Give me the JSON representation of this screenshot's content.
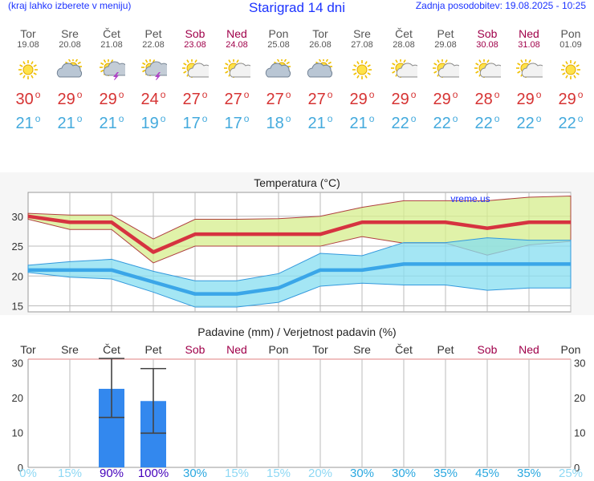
{
  "header": {
    "menu_hint": "(kraj lahko izberete v meniju)",
    "title": "Starigrad 14 dni",
    "updated": "Zadnja posodobitev: 19.08.2025 - 10:25"
  },
  "colors": {
    "link": "#1c33ff",
    "weekday": "#555555",
    "weekend": "#a0004a",
    "hi": "#d63333",
    "lo": "#44aadd",
    "bar": "#3388ee"
  },
  "days": [
    {
      "name": "Tor",
      "date": "19.08",
      "weekend": false,
      "icon": "sun-icon",
      "hi": "30",
      "lo": "21",
      "prob": "0%"
    },
    {
      "name": "Sre",
      "date": "20.08",
      "weekend": false,
      "icon": "cloud-sun-icon",
      "hi": "29",
      "lo": "21",
      "prob": "15%"
    },
    {
      "name": "Čet",
      "date": "21.08",
      "weekend": false,
      "icon": "storm-sun-icon",
      "hi": "29",
      "lo": "21",
      "prob": "90%"
    },
    {
      "name": "Pet",
      "date": "22.08",
      "weekend": false,
      "icon": "storm-sun-icon",
      "hi": "24",
      "lo": "19",
      "prob": "100%"
    },
    {
      "name": "Sob",
      "date": "23.08",
      "weekend": true,
      "icon": "partly-sunny-icon",
      "hi": "27",
      "lo": "17",
      "prob": "30%"
    },
    {
      "name": "Ned",
      "date": "24.08",
      "weekend": true,
      "icon": "partly-sunny-icon",
      "hi": "27",
      "lo": "17",
      "prob": "15%"
    },
    {
      "name": "Pon",
      "date": "25.08",
      "weekend": false,
      "icon": "cloud-sun-icon",
      "hi": "27",
      "lo": "18",
      "prob": "15%"
    },
    {
      "name": "Tor",
      "date": "26.08",
      "weekend": false,
      "icon": "cloud-sun-icon",
      "hi": "27",
      "lo": "21",
      "prob": "20%"
    },
    {
      "name": "Sre",
      "date": "27.08",
      "weekend": false,
      "icon": "sun-icon",
      "hi": "29",
      "lo": "21",
      "prob": "30%"
    },
    {
      "name": "Čet",
      "date": "28.08",
      "weekend": false,
      "icon": "partly-sunny-icon",
      "hi": "29",
      "lo": "22",
      "prob": "30%"
    },
    {
      "name": "Pet",
      "date": "29.08",
      "weekend": false,
      "icon": "partly-sunny-icon",
      "hi": "29",
      "lo": "22",
      "prob": "35%"
    },
    {
      "name": "Sob",
      "date": "30.08",
      "weekend": true,
      "icon": "partly-sunny-icon",
      "hi": "28",
      "lo": "22",
      "prob": "45%"
    },
    {
      "name": "Ned",
      "date": "31.08",
      "weekend": true,
      "icon": "partly-sunny-icon",
      "hi": "29",
      "lo": "22",
      "prob": "35%"
    },
    {
      "name": "Pon",
      "date": "01.09",
      "weekend": false,
      "icon": "sun-icon",
      "hi": "29",
      "lo": "22",
      "prob": "25%"
    }
  ],
  "chart_data": [
    {
      "type": "line",
      "title": "Temperatura (°C)",
      "watermark": "vreme.us",
      "x_tick_labels": [],
      "ylim": [
        14,
        34
      ],
      "yticks": [
        "15",
        "20",
        "25",
        "30"
      ],
      "series": [
        {
          "name": "max",
          "values": [
            30,
            29,
            29,
            24,
            27,
            27,
            27,
            27,
            29,
            29,
            29,
            28,
            29,
            29
          ]
        },
        {
          "name": "min",
          "values": [
            21,
            21,
            21,
            19,
            17,
            17,
            18,
            21,
            21,
            22,
            22,
            22,
            22,
            22
          ]
        },
        {
          "name": "max_upper",
          "values": [
            30.5,
            30.2,
            30.2,
            26.2,
            29.5,
            29.5,
            29.6,
            30,
            31.5,
            32.6,
            32.6,
            32.6,
            33.2,
            33.4
          ]
        },
        {
          "name": "max_lower",
          "values": [
            29.5,
            27.8,
            27.8,
            22.2,
            25,
            25,
            25,
            25,
            26.6,
            25.5,
            25.5,
            23.5,
            25.2,
            25.8
          ]
        },
        {
          "name": "min_upper",
          "values": [
            21.8,
            22.4,
            22.8,
            20.8,
            19.2,
            19.2,
            20.4,
            23.8,
            23.4,
            25.6,
            25.6,
            26.4,
            26,
            26
          ]
        },
        {
          "name": "min_lower",
          "values": [
            20.6,
            19.8,
            19.5,
            17.3,
            14.8,
            14.8,
            15.6,
            18.3,
            18.8,
            18.5,
            18.5,
            17.6,
            18,
            18
          ]
        }
      ]
    },
    {
      "type": "bar",
      "title": "Padavine (mm) / Verjetnost padavin (%)",
      "categories": [
        "Tor",
        "Sre",
        "Čet",
        "Pet",
        "Sob",
        "Ned",
        "Pon",
        "Tor",
        "Sre",
        "Čet",
        "Pet",
        "Sob",
        "Ned",
        "Pon"
      ],
      "weekend": [
        false,
        false,
        false,
        false,
        true,
        true,
        false,
        false,
        false,
        false,
        false,
        true,
        true,
        false
      ],
      "values": [
        0,
        0,
        22.5,
        19,
        0,
        0,
        0,
        0,
        0,
        0,
        0,
        0,
        0,
        0
      ],
      "error_low": [
        0,
        0,
        14.3,
        9.8,
        0,
        0,
        0,
        0,
        0,
        0,
        0,
        0,
        0,
        0
      ],
      "error_high": [
        0,
        0,
        31.2,
        28.3,
        0,
        0,
        0,
        0,
        0,
        0,
        0,
        0,
        0,
        0
      ],
      "probability": [
        "0%",
        "15%",
        "90%",
        "100%",
        "30%",
        "15%",
        "15%",
        "20%",
        "30%",
        "30%",
        "35%",
        "45%",
        "35%",
        "25%"
      ],
      "ylim": [
        0,
        31
      ],
      "yticks": [
        "0",
        "10",
        "20",
        "30"
      ]
    }
  ]
}
